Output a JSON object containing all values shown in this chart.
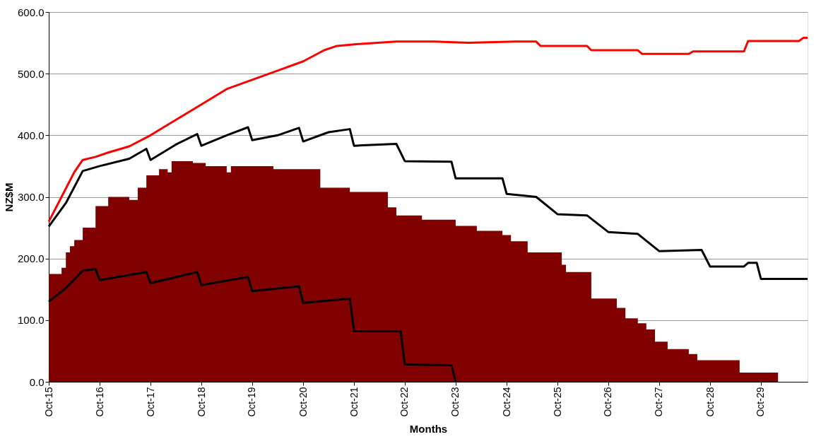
{
  "chart_data": {
    "type": "line",
    "xlabel": "Months",
    "ylabel": "NZ$M",
    "grid": "y",
    "legend": false,
    "xlim": [
      "2015-10",
      "2030-09"
    ],
    "ylim": [
      0,
      600
    ],
    "yticks": [
      {
        "value": 0,
        "label": "0.0"
      },
      {
        "value": 100,
        "label": "100.0"
      },
      {
        "value": 200,
        "label": "200.0"
      },
      {
        "value": 300,
        "label": "300.0"
      },
      {
        "value": 400,
        "label": "400.0"
      },
      {
        "value": 500,
        "label": "500.0"
      },
      {
        "value": 600,
        "label": "600.0"
      }
    ],
    "xticks": [
      {
        "value": "2015-10",
        "label": "Oct-15"
      },
      {
        "value": "2016-10",
        "label": "Oct-16"
      },
      {
        "value": "2017-10",
        "label": "Oct-17"
      },
      {
        "value": "2018-10",
        "label": "Oct-18"
      },
      {
        "value": "2019-10",
        "label": "Oct-19"
      },
      {
        "value": "2020-10",
        "label": "Oct-20"
      },
      {
        "value": "2021-10",
        "label": "Oct-21"
      },
      {
        "value": "2022-10",
        "label": "Oct-22"
      },
      {
        "value": "2023-10",
        "label": "Oct-23"
      },
      {
        "value": "2024-10",
        "label": "Oct-24"
      },
      {
        "value": "2025-10",
        "label": "Oct-25"
      },
      {
        "value": "2026-10",
        "label": "Oct-26"
      },
      {
        "value": "2027-10",
        "label": "Oct-27"
      },
      {
        "value": "2028-10",
        "label": "Oct-28"
      },
      {
        "value": "2029-10",
        "label": "Oct-29"
      }
    ],
    "series": [
      {
        "type": "area",
        "color": "#800000",
        "x": [
          "2015-10",
          "2016-01",
          "2016-02",
          "2016-03",
          "2016-04",
          "2016-06",
          "2016-09",
          "2016-12",
          "2017-05",
          "2017-07",
          "2017-09",
          "2017-12",
          "2018-02",
          "2018-03",
          "2018-08",
          "2018-11",
          "2019-04",
          "2019-05",
          "2020-03",
          "2021-02",
          "2021-09",
          "2022-06",
          "2022-08",
          "2023-02",
          "2023-10",
          "2024-03",
          "2024-09",
          "2024-11",
          "2025-03",
          "2025-11",
          "2025-12",
          "2026-06",
          "2026-12",
          "2027-02",
          "2027-05",
          "2027-07",
          "2027-09",
          "2027-12",
          "2028-05",
          "2028-07",
          "2029-05",
          "2030-02",
          "2030-09"
        ],
        "values": [
          175,
          185,
          210,
          220,
          230,
          250,
          285,
          300,
          295,
          315,
          335,
          345,
          340,
          358,
          355,
          350,
          340,
          350,
          345,
          315,
          308,
          283,
          270,
          263,
          253,
          245,
          238,
          228,
          210,
          190,
          178,
          135,
          120,
          103,
          95,
          85,
          65,
          53,
          45,
          35,
          15,
          0,
          0
        ]
      },
      {
        "color": "#ff0000",
        "x": [
          "2015-10",
          "2016-01",
          "2016-04",
          "2016-06",
          "2016-09",
          "2016-12",
          "2017-05",
          "2017-10",
          "2018-04",
          "2018-10",
          "2019-04",
          "2019-10",
          "2020-04",
          "2020-10",
          "2021-03",
          "2021-06",
          "2021-11",
          "2022-08",
          "2023-05",
          "2024-01",
          "2024-12",
          "2025-05",
          "2025-06",
          "2026-05",
          "2026-06",
          "2027-05",
          "2027-06",
          "2028-05",
          "2028-06",
          "2029-06",
          "2029-07",
          "2030-07",
          "2030-08",
          "2030-09"
        ],
        "values": [
          260,
          300,
          340,
          360,
          365,
          372,
          382,
          400,
          425,
          450,
          475,
          490,
          505,
          520,
          538,
          545,
          548,
          552,
          552,
          550,
          552,
          552,
          545,
          545,
          538,
          538,
          532,
          532,
          536,
          536,
          553,
          553,
          558,
          558
        ]
      },
      {
        "color": "#000000",
        "x": [
          "2015-10",
          "2016-02",
          "2016-06",
          "2016-10",
          "2017-05",
          "2017-09",
          "2017-10",
          "2018-04",
          "2018-09",
          "2018-10",
          "2019-04",
          "2019-09",
          "2019-10",
          "2020-04",
          "2020-09",
          "2020-10",
          "2021-04",
          "2021-09",
          "2021-10",
          "2022-08",
          "2022-10",
          "2023-09",
          "2023-10",
          "2024-09",
          "2024-10",
          "2025-05",
          "2025-10",
          "2026-05",
          "2026-10",
          "2027-05",
          "2027-10",
          "2028-08",
          "2028-10",
          "2029-06",
          "2029-07",
          "2029-09",
          "2029-10",
          "2030-09"
        ],
        "values": [
          252,
          290,
          342,
          350,
          362,
          378,
          360,
          385,
          402,
          383,
          400,
          413,
          392,
          400,
          412,
          390,
          405,
          410,
          383,
          386,
          358,
          357,
          330,
          330,
          305,
          300,
          272,
          270,
          243,
          240,
          212,
          214,
          187,
          187,
          193,
          193,
          167,
          167
        ]
      },
      {
        "color": "#000000",
        "x": [
          "2015-10",
          "2016-02",
          "2016-06",
          "2016-09",
          "2016-10",
          "2017-09",
          "2017-10",
          "2018-09",
          "2018-10",
          "2019-09",
          "2019-10",
          "2020-09",
          "2020-10",
          "2021-09",
          "2021-10",
          "2022-09",
          "2022-10",
          "2023-09",
          "2023-10"
        ],
        "values": [
          130,
          152,
          180,
          183,
          165,
          178,
          160,
          178,
          157,
          170,
          147,
          155,
          128,
          135,
          82,
          82,
          28,
          27,
          0
        ]
      }
    ]
  }
}
